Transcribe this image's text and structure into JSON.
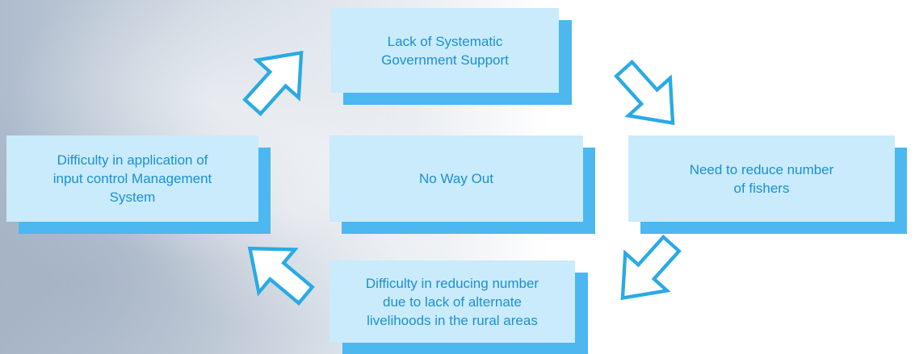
{
  "nodes": [
    {
      "lines": [
        "Lack of Systematic",
        "Government Support"
      ]
    },
    {
      "lines": [
        "Difficulty in application of",
        "input control Management",
        "System"
      ]
    },
    {
      "lines": [
        "No Way Out"
      ]
    },
    {
      "lines": [
        "Need to reduce number",
        "of fishers"
      ]
    },
    {
      "lines": [
        "Difficulty in reducing number",
        "due to lack of alternate",
        "livelihoods in the rural areas"
      ]
    }
  ]
}
